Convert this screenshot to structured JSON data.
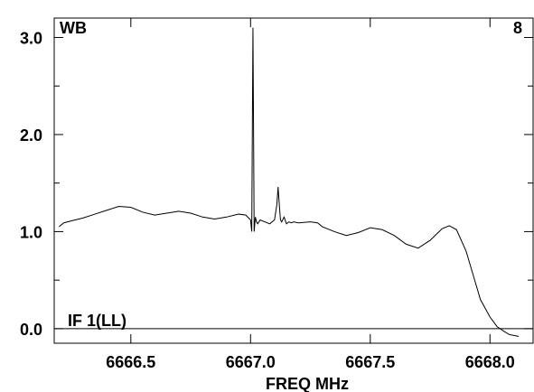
{
  "chart_data": {
    "type": "line",
    "title": "",
    "xlabel": "FREQ MHz",
    "ylabel": "",
    "xlim": [
      6666.18,
      6668.18
    ],
    "ylim": [
      -0.15,
      3.2
    ],
    "grid": false,
    "legend": "none",
    "annotations": {
      "top_left": "WB",
      "top_right": "8",
      "bottom_left": "IF 1(LL)"
    },
    "x_ticks": [
      {
        "value": 6666.5,
        "label": "6666.5"
      },
      {
        "value": 6667.0,
        "label": "6667.0"
      },
      {
        "value": 6667.5,
        "label": "6667.5"
      },
      {
        "value": 6668.0,
        "label": "6668.0"
      }
    ],
    "y_ticks": [
      {
        "value": 0.0,
        "label": "0.0"
      },
      {
        "value": 1.0,
        "label": "1.0"
      },
      {
        "value": 2.0,
        "label": "2.0"
      },
      {
        "value": 3.0,
        "label": "3.0"
      }
    ],
    "reference_line_y": 0.0,
    "series": [
      {
        "color": "#000000",
        "x": [
          6666.2,
          6666.22,
          6666.25,
          6666.3,
          6666.35,
          6666.4,
          6666.45,
          6666.5,
          6666.55,
          6666.6,
          6666.65,
          6666.7,
          6666.75,
          6666.8,
          6666.85,
          6666.9,
          6666.95,
          6666.98,
          6667.0,
          6667.005,
          6667.01,
          6667.015,
          6667.02,
          6667.025,
          6667.03,
          6667.04,
          6667.06,
          6667.08,
          6667.1,
          6667.11,
          6667.115,
          6667.12,
          6667.125,
          6667.13,
          6667.14,
          6667.15,
          6667.16,
          6667.17,
          6667.18,
          6667.2,
          6667.25,
          6667.28,
          6667.3,
          6667.35,
          6667.4,
          6667.45,
          6667.5,
          6667.55,
          6667.6,
          6667.65,
          6667.7,
          6667.75,
          6667.8,
          6667.83,
          6667.86,
          6667.9,
          6667.93,
          6667.96,
          6668.0,
          6668.03,
          6668.06,
          6668.08,
          6668.1,
          6668.12
        ],
        "y": [
          1.05,
          1.09,
          1.11,
          1.14,
          1.18,
          1.22,
          1.26,
          1.25,
          1.2,
          1.17,
          1.19,
          1.21,
          1.19,
          1.15,
          1.13,
          1.15,
          1.18,
          1.17,
          1.12,
          1.0,
          3.1,
          1.0,
          1.15,
          1.1,
          1.08,
          1.12,
          1.1,
          1.08,
          1.12,
          1.28,
          1.46,
          1.28,
          1.12,
          1.1,
          1.15,
          1.08,
          1.1,
          1.09,
          1.1,
          1.09,
          1.1,
          1.09,
          1.05,
          1.0,
          0.96,
          0.99,
          1.04,
          1.02,
          0.96,
          0.87,
          0.83,
          0.91,
          1.03,
          1.06,
          1.02,
          0.8,
          0.55,
          0.3,
          0.12,
          0.02,
          -0.03,
          -0.06,
          -0.07,
          -0.08
        ]
      }
    ]
  }
}
